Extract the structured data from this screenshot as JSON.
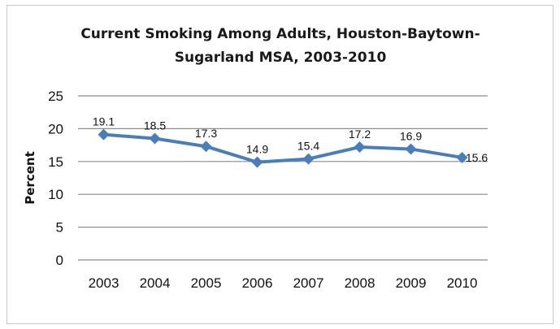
{
  "chart_data": {
    "type": "line",
    "title_lines": [
      "Current Smoking Among Adults, Houston-Baytown-",
      "Sugarland MSA, 2003-2010"
    ],
    "xlabel": "",
    "ylabel": "Percent",
    "categories": [
      "2003",
      "2004",
      "2005",
      "2006",
      "2007",
      "2008",
      "2009",
      "2010"
    ],
    "series": [
      {
        "values": [
          19.1,
          18.5,
          17.3,
          14.9,
          15.4,
          17.2,
          16.9,
          15.6
        ],
        "color": "#4a7ebb"
      }
    ],
    "data_labels": [
      "19.1",
      "18.5",
      "17.3",
      "14.9",
      "15.4",
      "17.2",
      "16.9",
      "15.6"
    ],
    "ylim": [
      0,
      25
    ],
    "yticks": [
      0,
      5,
      10,
      15,
      20,
      25
    ],
    "grid": true,
    "legend": "none"
  }
}
